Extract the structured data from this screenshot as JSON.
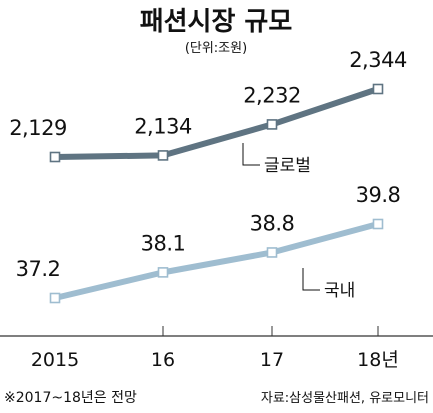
{
  "chart_data": {
    "type": "line",
    "title": "패션시장 규모",
    "unit": "(단위:조원)",
    "categories": [
      "2015",
      "16",
      "17",
      "18년"
    ],
    "series": [
      {
        "name": "글로벌",
        "values": [
          2129,
          2134,
          2232,
          2344
        ],
        "labels": [
          "2,129",
          "2,134",
          "2,232",
          "2,344"
        ],
        "color": "#5f7482"
      },
      {
        "name": "국내",
        "values": [
          37.2,
          38.1,
          38.8,
          39.8
        ],
        "labels": [
          "37.2",
          "38.1",
          "38.8",
          "39.8"
        ],
        "color": "#9fbdd0"
      }
    ],
    "note": "※2017~18년은 전망",
    "source": "자료:삼성물산패션, 유로모니터",
    "grid": false
  }
}
